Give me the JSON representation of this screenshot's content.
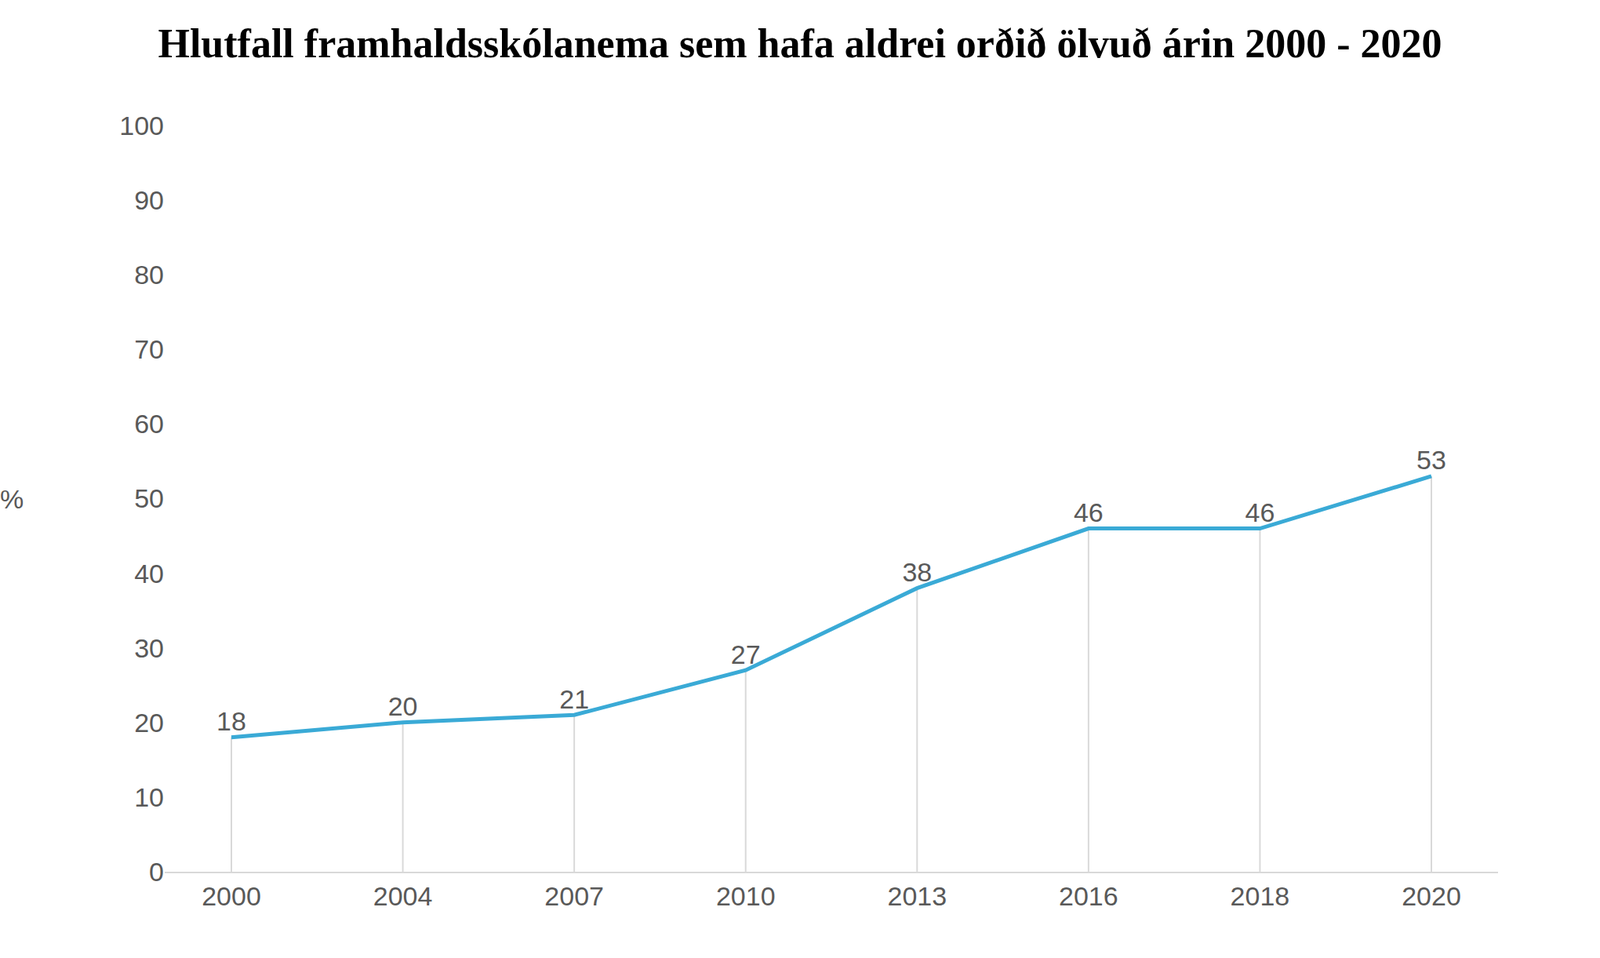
{
  "chart_data": {
    "type": "line",
    "title": "Hlutfall framhaldsskólanema sem hafa aldrei orðið ölvuð árin 2000 - 2020",
    "ylabel": "%",
    "categories": [
      "2000",
      "2004",
      "2007",
      "2010",
      "2013",
      "2016",
      "2018",
      "2020"
    ],
    "values": [
      18,
      20,
      21,
      27,
      38,
      46,
      46,
      53
    ],
    "color": "#3aaad6",
    "ylim": [
      0,
      100
    ],
    "yticks": [
      0,
      10,
      20,
      30,
      40,
      50,
      60,
      70,
      80,
      90,
      100
    ],
    "grid": false,
    "data_labels": true
  }
}
